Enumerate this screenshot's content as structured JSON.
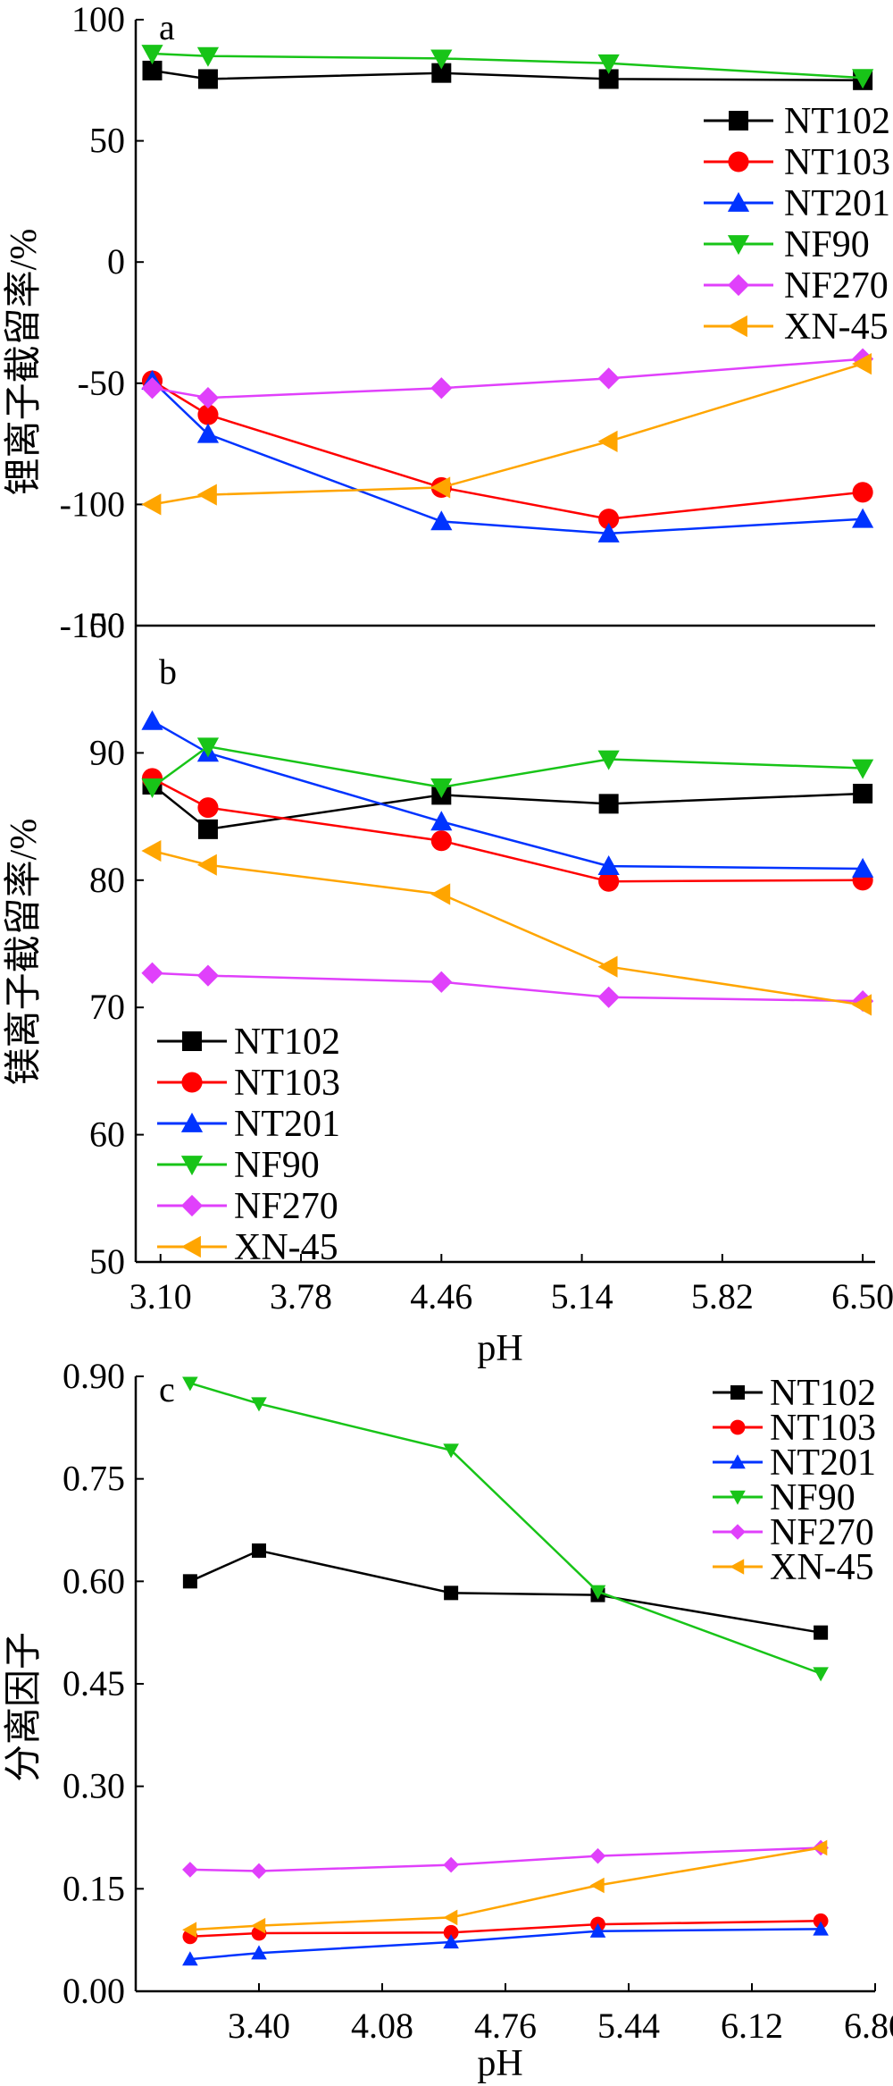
{
  "colors": {
    "NT102": "#000000",
    "NT103": "#ff0000",
    "NT201": "#0033ff",
    "NF90": "#18c418",
    "NF270": "#e040fb",
    "XN-45": "#ffa500"
  },
  "markers": {
    "NT102": "square",
    "NT103": "circle",
    "NT201": "triangle-up",
    "NF90": "triangle-down",
    "NF270": "diamond",
    "XN-45": "triangle-left"
  },
  "chart_data": [
    {
      "type": "line",
      "panel_label": "a",
      "ylabel": "锂离子截留率/%",
      "xlabel": "",
      "xlim": [
        2.98,
        6.56
      ],
      "ylim": [
        -150,
        100
      ],
      "yticks": [
        "100",
        "50",
        "0",
        "-50",
        "-100",
        "-150"
      ],
      "ytick_values": [
        100,
        50,
        0,
        -50,
        -100,
        -150
      ],
      "legend_position": "top-right",
      "series": [
        {
          "name": "NT102",
          "x": [
            3.06,
            3.33,
            4.46,
            5.27,
            6.5
          ],
          "y": [
            79,
            75.5,
            78,
            75.5,
            75
          ]
        },
        {
          "name": "NT103",
          "x": [
            3.06,
            3.33,
            4.46,
            5.27,
            6.5
          ],
          "y": [
            -49,
            -63,
            -93,
            -106,
            -95
          ]
        },
        {
          "name": "NT201",
          "x": [
            3.06,
            3.33,
            4.46,
            5.27,
            6.5
          ],
          "y": [
            -49,
            -71,
            -107,
            -112,
            -106
          ]
        },
        {
          "name": "NF90",
          "x": [
            3.06,
            3.33,
            4.46,
            5.27,
            6.5
          ],
          "y": [
            86,
            85,
            84,
            82,
            76
          ]
        },
        {
          "name": "NF270",
          "x": [
            3.06,
            3.33,
            4.46,
            5.27,
            6.5
          ],
          "y": [
            -52,
            -56,
            -52,
            -48,
            -40
          ]
        },
        {
          "name": "XN-45",
          "x": [
            3.06,
            3.33,
            4.46,
            5.27,
            6.5
          ],
          "y": [
            -100,
            -96,
            -93,
            -74,
            -42
          ]
        }
      ]
    },
    {
      "type": "line",
      "panel_label": "b",
      "ylabel": "镁离子截留率/%",
      "xlabel": "pH",
      "xlim": [
        2.98,
        6.56
      ],
      "ylim": [
        50,
        100
      ],
      "xticks": [
        "3.10",
        "3.78",
        "4.46",
        "5.14",
        "5.82",
        "6.50"
      ],
      "xtick_values": [
        3.1,
        3.78,
        4.46,
        5.14,
        5.82,
        6.5
      ],
      "yticks": [
        "100",
        "90",
        "80",
        "70",
        "60",
        "50"
      ],
      "ytick_values": [
        100,
        90,
        80,
        70,
        60,
        50
      ],
      "legend_position": "bottom-left",
      "series": [
        {
          "name": "NT102",
          "x": [
            3.06,
            3.33,
            4.46,
            5.27,
            6.5
          ],
          "y": [
            87.5,
            84,
            86.7,
            86,
            86.8
          ]
        },
        {
          "name": "NT103",
          "x": [
            3.06,
            3.33,
            4.46,
            5.27,
            6.5
          ],
          "y": [
            88,
            85.7,
            83.1,
            79.9,
            80
          ]
        },
        {
          "name": "NT201",
          "x": [
            3.06,
            3.33,
            4.46,
            5.27,
            6.5
          ],
          "y": [
            92.5,
            90,
            84.6,
            81.1,
            80.9
          ]
        },
        {
          "name": "NF90",
          "x": [
            3.06,
            3.33,
            4.46,
            5.27,
            6.5
          ],
          "y": [
            87.3,
            90.5,
            87.3,
            89.5,
            88.8
          ]
        },
        {
          "name": "NF270",
          "x": [
            3.06,
            3.33,
            4.46,
            5.27,
            6.5
          ],
          "y": [
            72.7,
            72.5,
            72,
            70.8,
            70.5
          ]
        },
        {
          "name": "XN-45",
          "x": [
            3.06,
            3.33,
            4.46,
            5.27,
            6.5
          ],
          "y": [
            82.3,
            81.2,
            78.9,
            73.2,
            70.2
          ]
        }
      ]
    },
    {
      "type": "line",
      "panel_label": "c",
      "ylabel": "分离因子",
      "xlabel": "pH",
      "xlim": [
        2.72,
        6.8
      ],
      "ylim": [
        0,
        0.9
      ],
      "xticks": [
        "3.40",
        "4.08",
        "4.76",
        "5.44",
        "6.12",
        "6.80"
      ],
      "xtick_values": [
        3.4,
        4.08,
        4.76,
        5.44,
        6.12,
        6.8
      ],
      "yticks": [
        "0.90",
        "0.75",
        "0.60",
        "0.45",
        "0.30",
        "0.15",
        "0.00"
      ],
      "ytick_values": [
        0.9,
        0.75,
        0.6,
        0.45,
        0.3,
        0.15,
        0
      ],
      "legend_position": "top-right",
      "series": [
        {
          "name": "NT102",
          "x": [
            3.02,
            3.4,
            4.46,
            5.27,
            6.5
          ],
          "y": [
            0.6,
            0.645,
            0.583,
            0.58,
            0.525
          ]
        },
        {
          "name": "NT103",
          "x": [
            3.02,
            3.4,
            4.46,
            5.27,
            6.5
          ],
          "y": [
            0.08,
            0.085,
            0.086,
            0.098,
            0.103
          ]
        },
        {
          "name": "NT201",
          "x": [
            3.02,
            3.4,
            4.46,
            5.27,
            6.5
          ],
          "y": [
            0.047,
            0.056,
            0.072,
            0.088,
            0.091
          ]
        },
        {
          "name": "NF90",
          "x": [
            3.02,
            3.4,
            4.46,
            5.27,
            6.5
          ],
          "y": [
            0.89,
            0.86,
            0.792,
            0.585,
            0.465
          ]
        },
        {
          "name": "NF270",
          "x": [
            3.02,
            3.4,
            4.46,
            5.27,
            6.5
          ],
          "y": [
            0.178,
            0.176,
            0.185,
            0.198,
            0.21
          ]
        },
        {
          "name": "XN-45",
          "x": [
            3.02,
            3.4,
            4.46,
            5.27,
            6.5
          ],
          "y": [
            0.09,
            0.096,
            0.108,
            0.155,
            0.21
          ]
        }
      ]
    }
  ]
}
